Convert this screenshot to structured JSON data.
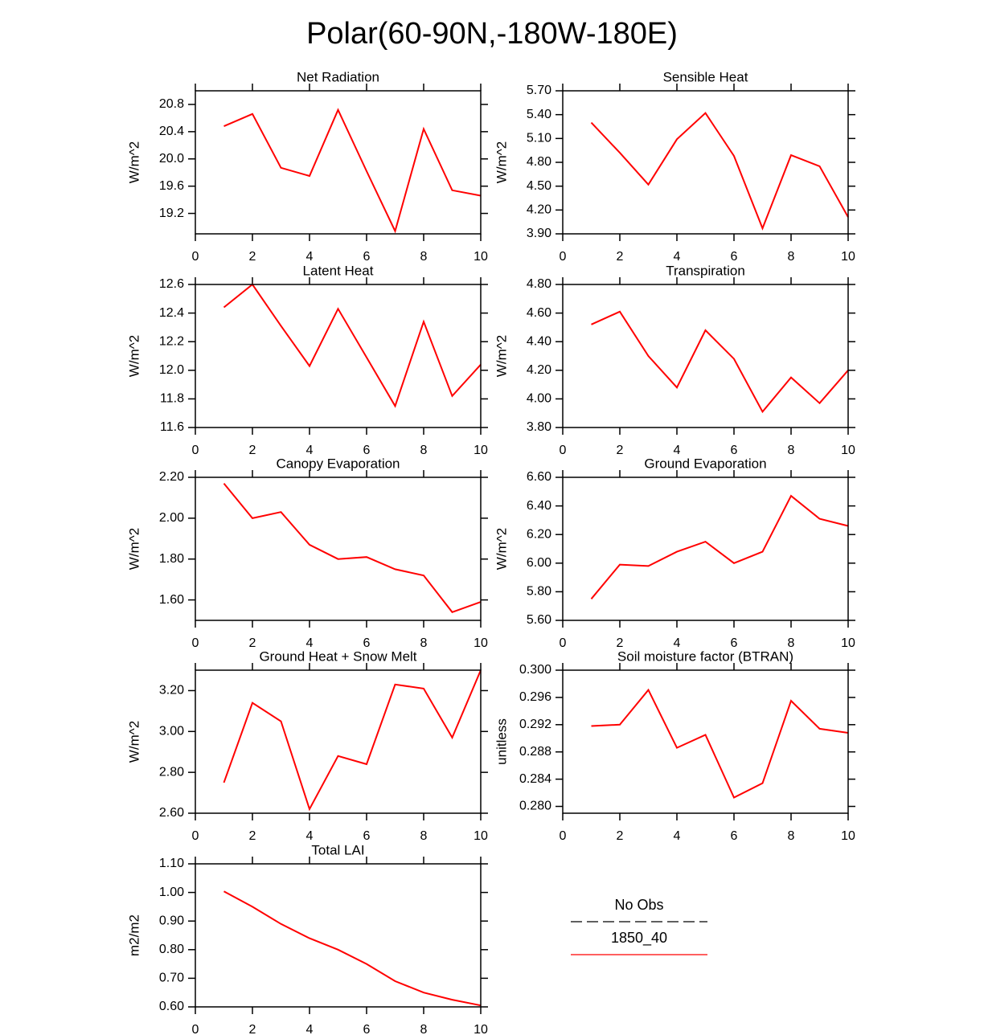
{
  "title": "Polar(60-90N,-180W-180E)",
  "legend": [
    {
      "name": "No Obs",
      "color": "#000000",
      "dashed": true
    },
    {
      "name": "1850_40",
      "color": "#ff0000",
      "dashed": false
    }
  ],
  "chart_data": [
    {
      "type": "line",
      "title": "Net Radiation",
      "ylabel": "W/m^2",
      "color": "#ff0000",
      "x": [
        1,
        2,
        3,
        4,
        5,
        6,
        7,
        8,
        9,
        10
      ],
      "values": [
        20.48,
        20.66,
        19.87,
        19.75,
        20.72,
        19.82,
        18.94,
        20.44,
        19.54,
        19.46
      ],
      "xlim": [
        0,
        10
      ],
      "xticks": [
        0,
        2,
        4,
        6,
        8,
        10
      ],
      "ylim": [
        18.9,
        21.0
      ],
      "yticks": [
        19.2,
        19.6,
        {
          "value": 20,
          "label": "20.0"
        },
        20.4,
        20.8
      ]
    },
    {
      "type": "line",
      "title": "Sensible Heat",
      "ylabel": "W/m^2",
      "color": "#ff0000",
      "x": [
        1,
        2,
        3,
        4,
        5,
        6,
        7,
        8,
        9,
        10
      ],
      "values": [
        5.3,
        4.92,
        4.52,
        5.09,
        5.42,
        4.88,
        3.97,
        4.89,
        4.75,
        4.11
      ],
      "xlim": [
        0,
        10
      ],
      "xticks": [
        0,
        2,
        4,
        6,
        8,
        10
      ],
      "ylim": [
        3.9,
        5.7
      ],
      "yticks": [
        {
          "value": 3.9,
          "label": "3.90"
        },
        {
          "value": 4.2,
          "label": "4.20"
        },
        {
          "value": 4.5,
          "label": "4.50"
        },
        {
          "value": 4.8,
          "label": "4.80"
        },
        {
          "value": 5.1,
          "label": "5.10"
        },
        {
          "value": 5.4,
          "label": "5.40"
        },
        {
          "value": 5.7,
          "label": "5.70"
        }
      ]
    },
    {
      "type": "line",
      "title": "Latent Heat",
      "ylabel": "W/m^2",
      "color": "#ff0000",
      "x": [
        1,
        2,
        3,
        4,
        5,
        6,
        7,
        8,
        9,
        10
      ],
      "values": [
        12.44,
        12.6,
        12.31,
        12.03,
        12.43,
        12.09,
        11.75,
        12.34,
        11.82,
        12.04
      ],
      "xlim": [
        0,
        10
      ],
      "xticks": [
        0,
        2,
        4,
        6,
        8,
        10
      ],
      "ylim": [
        11.6,
        12.6
      ],
      "yticks": [
        11.6,
        11.8,
        {
          "value": 12,
          "label": "12.0"
        },
        12.2,
        12.4,
        12.6
      ]
    },
    {
      "type": "line",
      "title": "Transpiration",
      "ylabel": "W/m^2",
      "color": "#ff0000",
      "x": [
        1,
        2,
        3,
        4,
        5,
        6,
        7,
        8,
        9,
        10
      ],
      "values": [
        4.52,
        4.61,
        4.3,
        4.08,
        4.48,
        4.28,
        3.91,
        4.15,
        3.97,
        4.2
      ],
      "xlim": [
        0,
        10
      ],
      "xticks": [
        0,
        2,
        4,
        6,
        8,
        10
      ],
      "ylim": [
        3.8,
        4.8
      ],
      "yticks": [
        {
          "value": 3.8,
          "label": "3.80"
        },
        {
          "value": 4,
          "label": "4.00"
        },
        {
          "value": 4.2,
          "label": "4.20"
        },
        {
          "value": 4.4,
          "label": "4.40"
        },
        {
          "value": 4.6,
          "label": "4.60"
        },
        {
          "value": 4.8,
          "label": "4.80"
        }
      ]
    },
    {
      "type": "line",
      "title": "Canopy Evaporation",
      "ylabel": "W/m^2",
      "color": "#ff0000",
      "x": [
        1,
        2,
        3,
        4,
        5,
        6,
        7,
        8,
        9,
        10
      ],
      "values": [
        2.17,
        2.0,
        2.03,
        1.87,
        1.8,
        1.81,
        1.75,
        1.72,
        1.54,
        1.59
      ],
      "xlim": [
        0,
        10
      ],
      "xticks": [
        0,
        2,
        4,
        6,
        8,
        10
      ],
      "ylim": [
        1.5,
        2.2
      ],
      "yticks": [
        {
          "value": 1.6,
          "label": "1.60"
        },
        {
          "value": 1.8,
          "label": "1.80"
        },
        {
          "value": 2,
          "label": "2.00"
        },
        {
          "value": 2.2,
          "label": "2.20"
        }
      ]
    },
    {
      "type": "line",
      "title": "Ground Evaporation",
      "ylabel": "W/m^2",
      "color": "#ff0000",
      "x": [
        1,
        2,
        3,
        4,
        5,
        6,
        7,
        8,
        9,
        10
      ],
      "values": [
        5.75,
        5.99,
        5.98,
        6.08,
        6.15,
        6.0,
        6.08,
        6.47,
        6.31,
        6.26
      ],
      "xlim": [
        0,
        10
      ],
      "xticks": [
        0,
        2,
        4,
        6,
        8,
        10
      ],
      "ylim": [
        5.6,
        6.6
      ],
      "yticks": [
        {
          "value": 5.6,
          "label": "5.60"
        },
        {
          "value": 5.8,
          "label": "5.80"
        },
        {
          "value": 6,
          "label": "6.00"
        },
        {
          "value": 6.2,
          "label": "6.20"
        },
        {
          "value": 6.4,
          "label": "6.40"
        },
        {
          "value": 6.6,
          "label": "6.60"
        }
      ]
    },
    {
      "type": "line",
      "title": "Ground Heat + Snow Melt",
      "ylabel": "W/m^2",
      "color": "#ff0000",
      "x": [
        1,
        2,
        3,
        4,
        5,
        6,
        7,
        8,
        9,
        10
      ],
      "values": [
        2.75,
        3.14,
        3.05,
        2.62,
        2.88,
        2.84,
        3.23,
        3.21,
        2.97,
        3.3
      ],
      "xlim": [
        0,
        10
      ],
      "xticks": [
        0,
        2,
        4,
        6,
        8,
        10
      ],
      "ylim": [
        2.6,
        3.3
      ],
      "yticks": [
        {
          "value": 2.6,
          "label": "2.60"
        },
        {
          "value": 2.8,
          "label": "2.80"
        },
        {
          "value": 3,
          "label": "3.00"
        },
        {
          "value": 3.2,
          "label": "3.20"
        }
      ]
    },
    {
      "type": "line",
      "title": "Soil moisture factor (BTRAN)",
      "ylabel": "unitless",
      "color": "#ff0000",
      "x": [
        1,
        2,
        3,
        4,
        5,
        6,
        7,
        8,
        9,
        10
      ],
      "values": [
        0.2918,
        0.292,
        0.2971,
        0.2886,
        0.2905,
        0.2813,
        0.2834,
        0.2955,
        0.2914,
        0.2908
      ],
      "xlim": [
        0,
        10
      ],
      "xticks": [
        0,
        2,
        4,
        6,
        8,
        10
      ],
      "ylim": [
        0.279,
        0.3
      ],
      "yticks": [
        {
          "value": 0.28,
          "label": "0.280"
        },
        0.284,
        0.288,
        0.292,
        0.296,
        {
          "value": 0.3,
          "label": "0.300"
        }
      ]
    },
    {
      "type": "line",
      "title": "Total LAI",
      "ylabel": "m2/m2",
      "color": "#ff0000",
      "x": [
        1,
        2,
        3,
        4,
        5,
        6,
        7,
        8,
        9,
        10
      ],
      "values": [
        1.004,
        0.95,
        0.89,
        0.84,
        0.8,
        0.75,
        0.69,
        0.65,
        0.625,
        0.605
      ],
      "xlim": [
        0,
        10
      ],
      "xticks": [
        0,
        2,
        4,
        6,
        8,
        10
      ],
      "ylim": [
        0.6,
        1.1
      ],
      "yticks": [
        {
          "value": 0.6,
          "label": "0.60"
        },
        {
          "value": 0.7,
          "label": "0.70"
        },
        {
          "value": 0.8,
          "label": "0.80"
        },
        {
          "value": 0.9,
          "label": "0.90"
        },
        {
          "value": 1,
          "label": "1.00"
        },
        {
          "value": 1.1,
          "label": "1.10"
        }
      ]
    }
  ]
}
